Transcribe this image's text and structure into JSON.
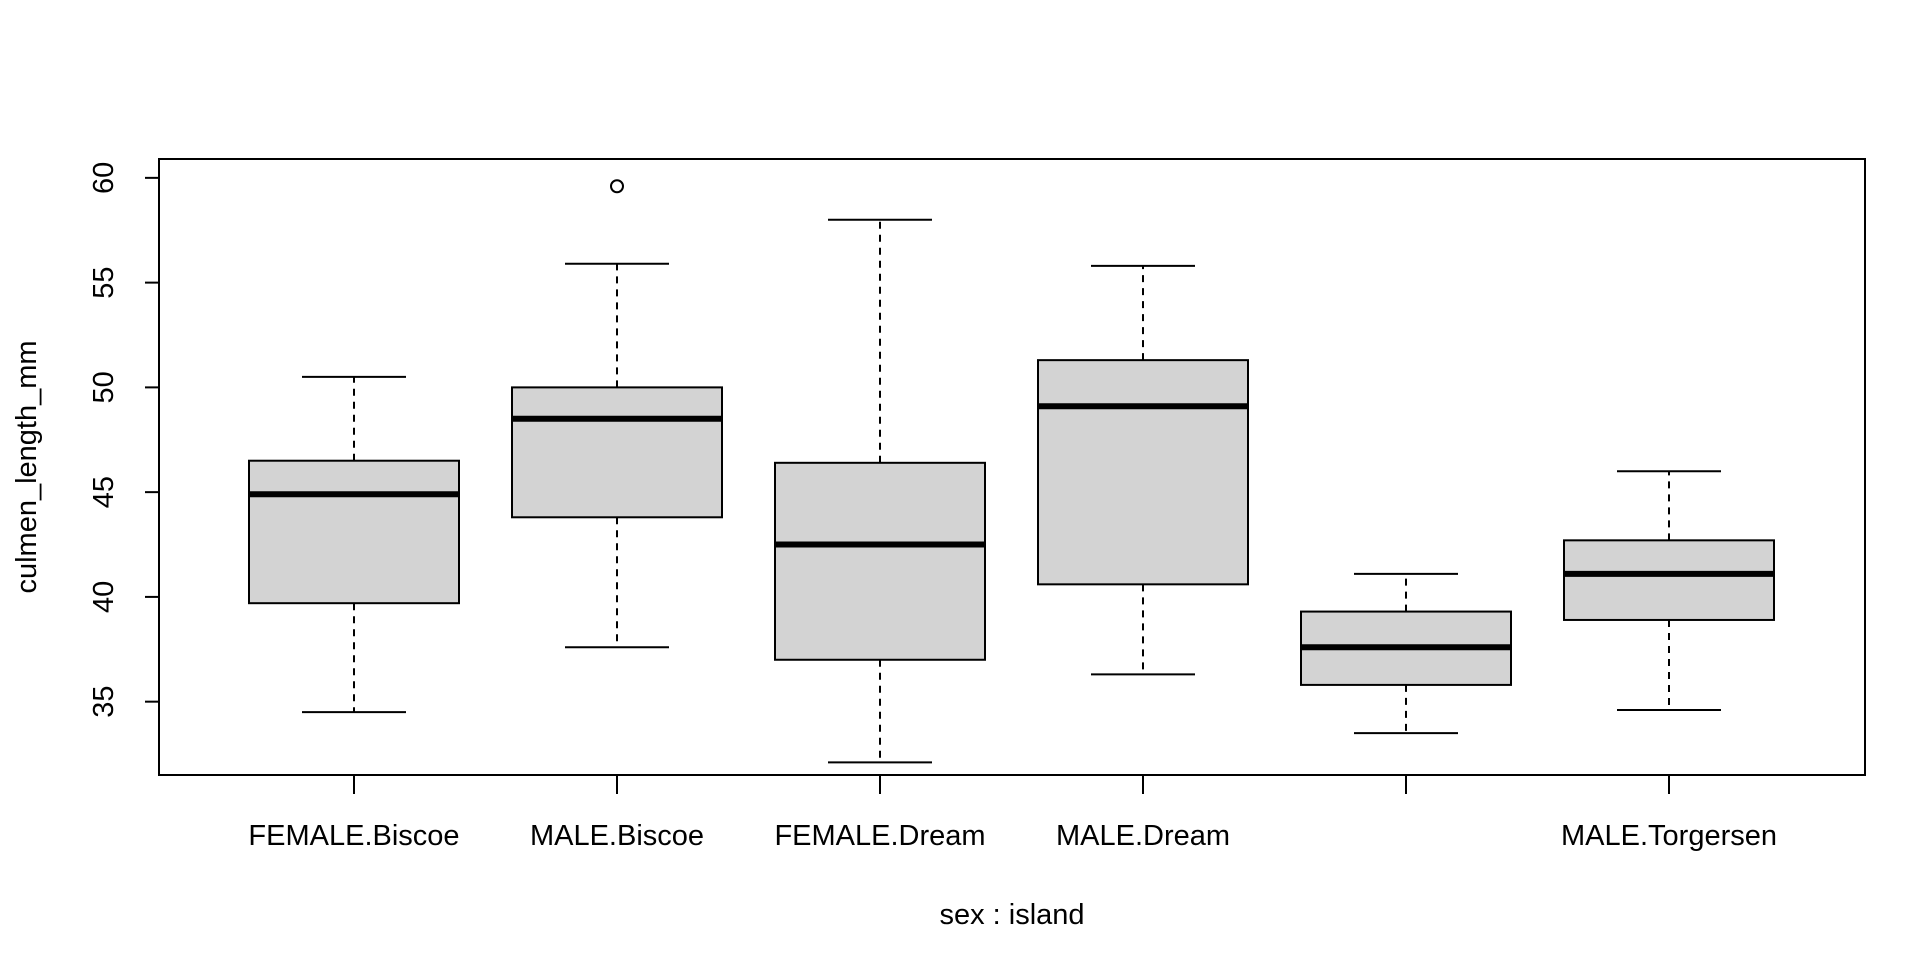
{
  "chart_data": {
    "type": "boxplot",
    "title": "",
    "xlabel": "sex : island",
    "ylabel": "culmen_length_mm",
    "ylim": [
      31.5,
      60.9
    ],
    "yticks": [
      35,
      40,
      45,
      50,
      55,
      60
    ],
    "grid": false,
    "legend": "none",
    "categories": [
      "FEMALE.Biscoe",
      "MALE.Biscoe",
      "FEMALE.Dream",
      "MALE.Dream",
      "",
      "MALE.Torgersen"
    ],
    "boxes": [
      {
        "whisker_low": 34.5,
        "q1": 39.7,
        "median": 44.9,
        "q3": 46.5,
        "whisker_high": 50.5,
        "outliers": []
      },
      {
        "whisker_low": 37.6,
        "q1": 43.8,
        "median": 48.5,
        "q3": 50.0,
        "whisker_high": 55.9,
        "outliers": [
          59.6
        ]
      },
      {
        "whisker_low": 32.1,
        "q1": 37.0,
        "median": 42.5,
        "q3": 46.4,
        "whisker_high": 58.0,
        "outliers": []
      },
      {
        "whisker_low": 36.3,
        "q1": 40.6,
        "median": 49.1,
        "q3": 51.3,
        "whisker_high": 55.8,
        "outliers": []
      },
      {
        "whisker_low": 33.5,
        "q1": 35.8,
        "median": 37.6,
        "q3": 39.3,
        "whisker_high": 41.1,
        "outliers": []
      },
      {
        "whisker_low": 34.6,
        "q1": 38.9,
        "median": 41.1,
        "q3": 42.7,
        "whisker_high": 46.0,
        "outliers": []
      }
    ],
    "colors": {
      "box_fill": "#d3d3d3",
      "stroke": "#000000"
    }
  }
}
